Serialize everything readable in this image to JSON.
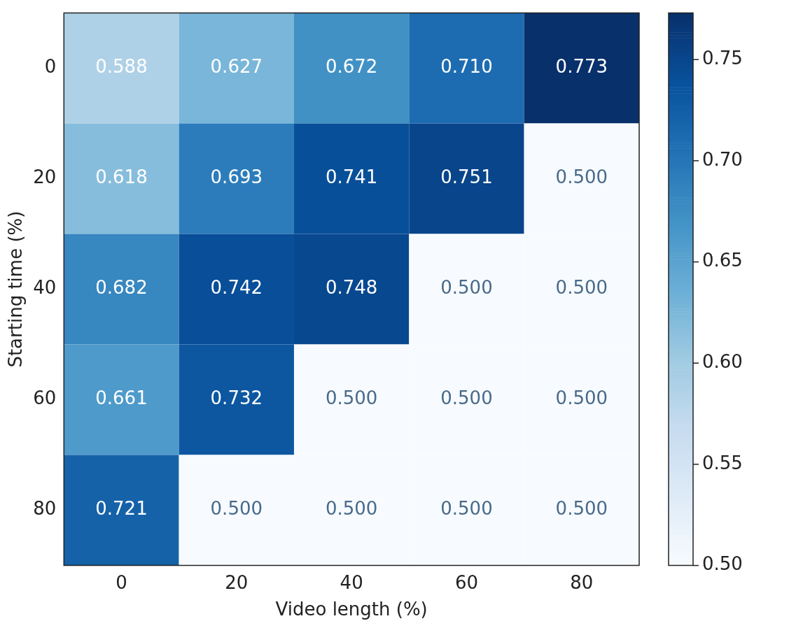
{
  "chart_data": {
    "type": "heatmap",
    "xlabel": "Video length (%)",
    "ylabel": "Starting time (%)",
    "categories": [
      "0",
      "20",
      "40",
      "60",
      "80"
    ],
    "y_categories": [
      "0",
      "20",
      "40",
      "60",
      "80"
    ],
    "cells": [
      [
        0.588,
        0.627,
        0.672,
        0.71,
        0.773
      ],
      [
        0.618,
        0.693,
        0.741,
        0.751,
        0.5
      ],
      [
        0.682,
        0.742,
        0.748,
        0.5,
        0.5
      ],
      [
        0.661,
        0.732,
        0.5,
        0.5,
        0.5
      ],
      [
        0.721,
        0.5,
        0.5,
        0.5,
        0.5
      ]
    ],
    "cell_labels": [
      [
        "0.588",
        "0.627",
        "0.672",
        "0.710",
        "0.773"
      ],
      [
        "0.618",
        "0.693",
        "0.741",
        "0.751",
        "0.500"
      ],
      [
        "0.682",
        "0.742",
        "0.748",
        "0.500",
        "0.500"
      ],
      [
        "0.661",
        "0.732",
        "0.500",
        "0.500",
        "0.500"
      ],
      [
        "0.721",
        "0.500",
        "0.500",
        "0.500",
        "0.500"
      ]
    ],
    "clim": [
      0.5,
      0.773
    ],
    "cticks": [
      {
        "value": 0.5,
        "label": "0.50"
      },
      0.55,
      {
        "value": 0.6,
        "label": "0.60"
      },
      0.65,
      {
        "value": 0.7,
        "label": "0.70"
      },
      0.75
    ]
  }
}
